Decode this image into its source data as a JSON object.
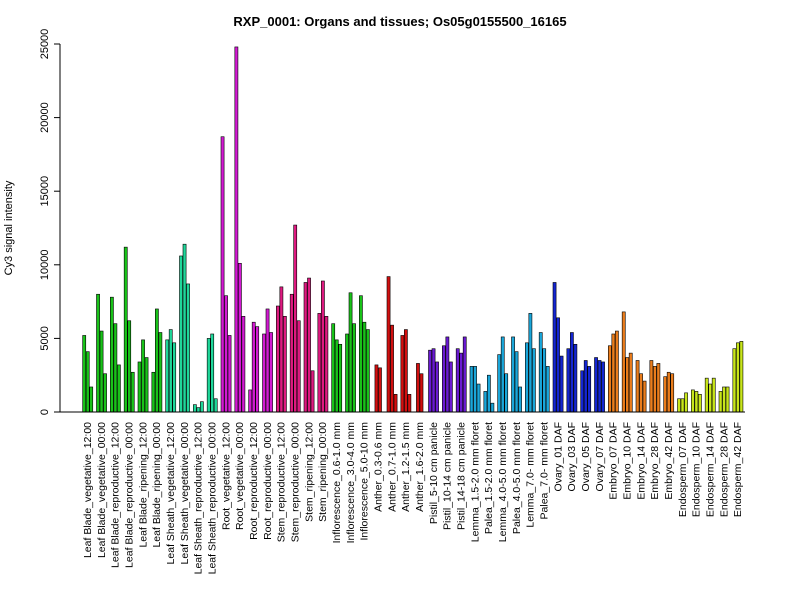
{
  "chart_data": {
    "type": "bar",
    "title": "RXP_0001: Organs and tissues; Os05g0155500_16165",
    "xlabel": "",
    "ylabel": "Cy3 signal intensity",
    "ylim": [
      0,
      25000
    ],
    "yticks": [
      0,
      5000,
      10000,
      15000,
      20000,
      25000
    ],
    "grid": false,
    "legend": "none",
    "groups": [
      {
        "label": "Leaf Blade_vegetative_12:00",
        "color": "#19c219",
        "values": [
          5200,
          4100,
          1700
        ]
      },
      {
        "label": "Leaf Blade_vegetative_00:00",
        "color": "#19c219",
        "values": [
          8000,
          5500,
          2600
        ]
      },
      {
        "label": "Leaf Blade_reproductive_12:00",
        "color": "#19c219",
        "values": [
          7800,
          6000,
          3200
        ]
      },
      {
        "label": "Leaf Blade_reproductive_00:00",
        "color": "#19c219",
        "values": [
          11200,
          6200,
          2700
        ]
      },
      {
        "label": "Leaf Blade_ripening_12:00",
        "color": "#19c219",
        "values": [
          3400,
          4900,
          3700
        ]
      },
      {
        "label": "Leaf Blade_ripening_00:00",
        "color": "#19c219",
        "values": [
          2700,
          7000,
          5400
        ]
      },
      {
        "label": "Leaf Sheath_vegetative_12:00",
        "color": "#20d79a",
        "values": [
          4900,
          5600,
          4700
        ]
      },
      {
        "label": "Leaf Sheath_vegetative_00:00",
        "color": "#20d79a",
        "values": [
          10600,
          11400,
          8700
        ]
      },
      {
        "label": "Leaf Sheath_reproductive_12:00",
        "color": "#20d79a",
        "values": [
          500,
          300,
          700
        ]
      },
      {
        "label": "Leaf Sheath_reproductive_00:00",
        "color": "#20d79a",
        "values": [
          5000,
          5300,
          900
        ]
      },
      {
        "label": "Root_vegetative_12:00",
        "color": "#d21ad2",
        "values": [
          18700,
          7900,
          5200
        ]
      },
      {
        "label": "Root_vegetative_00:00",
        "color": "#d21ad2",
        "values": [
          24800,
          10100,
          6500
        ]
      },
      {
        "label": "Root_reproductive_12:00",
        "color": "#d21ad2",
        "values": [
          1500,
          6100,
          5800
        ]
      },
      {
        "label": "Root_reproductive_00:00",
        "color": "#d21ad2",
        "values": [
          5300,
          7000,
          5400
        ]
      },
      {
        "label": "Stem_reproductive_12:00",
        "color": "#de1a80",
        "values": [
          7200,
          8500,
          6500
        ]
      },
      {
        "label": "Stem_reproductive_00:00",
        "color": "#de1a80",
        "values": [
          8000,
          12700,
          6200
        ]
      },
      {
        "label": "Stem_ripening_12:00",
        "color": "#de1a80",
        "values": [
          8800,
          9100,
          2800
        ]
      },
      {
        "label": "Stem_ripening_00:00",
        "color": "#de1a80",
        "values": [
          6700,
          8900,
          6500
        ]
      },
      {
        "label": "Inflorescence_0.6-1.0 mm",
        "color": "#19c219",
        "values": [
          6000,
          4900,
          4600
        ]
      },
      {
        "label": "Inflorescence_3.0-4.0 mm",
        "color": "#19c219",
        "values": [
          5300,
          8100,
          6000
        ]
      },
      {
        "label": "Inflorescence_5.0-10 mm",
        "color": "#19c219",
        "values": [
          7900,
          6100,
          5600
        ]
      },
      {
        "label": "Anther_0.3-0.6 mm",
        "color": "#d20f0f",
        "values": [
          3200,
          3000
        ]
      },
      {
        "label": "Anther_0.7-1.0 mm",
        "color": "#d20f0f",
        "values": [
          9200,
          5900,
          1200
        ]
      },
      {
        "label": "Anther_1.2-1.5 mm",
        "color": "#d20f0f",
        "values": [
          5200,
          5600,
          1200
        ]
      },
      {
        "label": "Anther_1.6-2.0 mm",
        "color": "#d20f0f",
        "values": [
          3300,
          2600
        ]
      },
      {
        "label": "Pistil_5-10 cm panicle",
        "color": "#6a1ad2",
        "values": [
          4200,
          4300,
          3400
        ]
      },
      {
        "label": "Pistil_10-14 cm panicle",
        "color": "#6a1ad2",
        "values": [
          4500,
          5100,
          3400
        ]
      },
      {
        "label": "Pistil_14-18 cm panicle",
        "color": "#6a1ad2",
        "values": [
          4300,
          4000,
          5100
        ]
      },
      {
        "label": "Lemma_1.5-2.0 mm floret",
        "color": "#1aa6d9",
        "values": [
          3100,
          3100,
          1900
        ]
      },
      {
        "label": "Palea_1.5-2.0 mm floret",
        "color": "#1aa6d9",
        "values": [
          1400,
          2500,
          600
        ]
      },
      {
        "label": "Lemma_4.0-5.0 mm floret",
        "color": "#1aa6d9",
        "values": [
          3900,
          5100,
          2600
        ]
      },
      {
        "label": "Palea_4.0-5.0 mm floret",
        "color": "#1aa6d9",
        "values": [
          5100,
          4100,
          1700
        ]
      },
      {
        "label": "Lemma_7.0- mm floret",
        "color": "#1aa6d9",
        "values": [
          4700,
          6700,
          4300
        ]
      },
      {
        "label": "Palea_7.0- mm floret",
        "color": "#1aa6d9",
        "values": [
          5400,
          4300,
          3100
        ]
      },
      {
        "label": "Ovary_01 DAF",
        "color": "#1426d2",
        "values": [
          8800,
          6400,
          3800
        ]
      },
      {
        "label": "Ovary_03 DAF",
        "color": "#1426d2",
        "values": [
          4300,
          5400,
          4600
        ]
      },
      {
        "label": "Ovary_05 DAF",
        "color": "#1426d2",
        "values": [
          2800,
          3500,
          3100
        ]
      },
      {
        "label": "Ovary_07 DAF",
        "color": "#1426d2",
        "values": [
          3700,
          3500,
          3400
        ]
      },
      {
        "label": "Embryo_07 DAF",
        "color": "#ea7d1c",
        "values": [
          4500,
          5300,
          5500
        ]
      },
      {
        "label": "Embryo_10 DAF",
        "color": "#ea7d1c",
        "values": [
          6800,
          3700,
          4000
        ]
      },
      {
        "label": "Embryo_14 DAF",
        "color": "#ea7d1c",
        "values": [
          3500,
          2600,
          2100
        ]
      },
      {
        "label": "Embryo_28 DAF",
        "color": "#ea7d1c",
        "values": [
          3500,
          3100,
          3300
        ]
      },
      {
        "label": "Embryo_42 DAF",
        "color": "#ea7d1c",
        "values": [
          2400,
          2700,
          2600
        ]
      },
      {
        "label": "Endosperm_07 DAF",
        "color": "#c8e61a",
        "values": [
          900,
          900,
          1300
        ]
      },
      {
        "label": "Endosperm_10 DAF",
        "color": "#c8e61a",
        "values": [
          1500,
          1400,
          1200
        ]
      },
      {
        "label": "Endosperm_14 DAF",
        "color": "#c8e61a",
        "values": [
          2300,
          1900,
          2300
        ]
      },
      {
        "label": "Endosperm_28 DAF",
        "color": "#c8e61a",
        "values": [
          1400,
          1700,
          1700
        ]
      },
      {
        "label": "Endosperm_42 DAF",
        "color": "#c8e61a",
        "values": [
          4300,
          4700,
          4800
        ]
      }
    ]
  }
}
